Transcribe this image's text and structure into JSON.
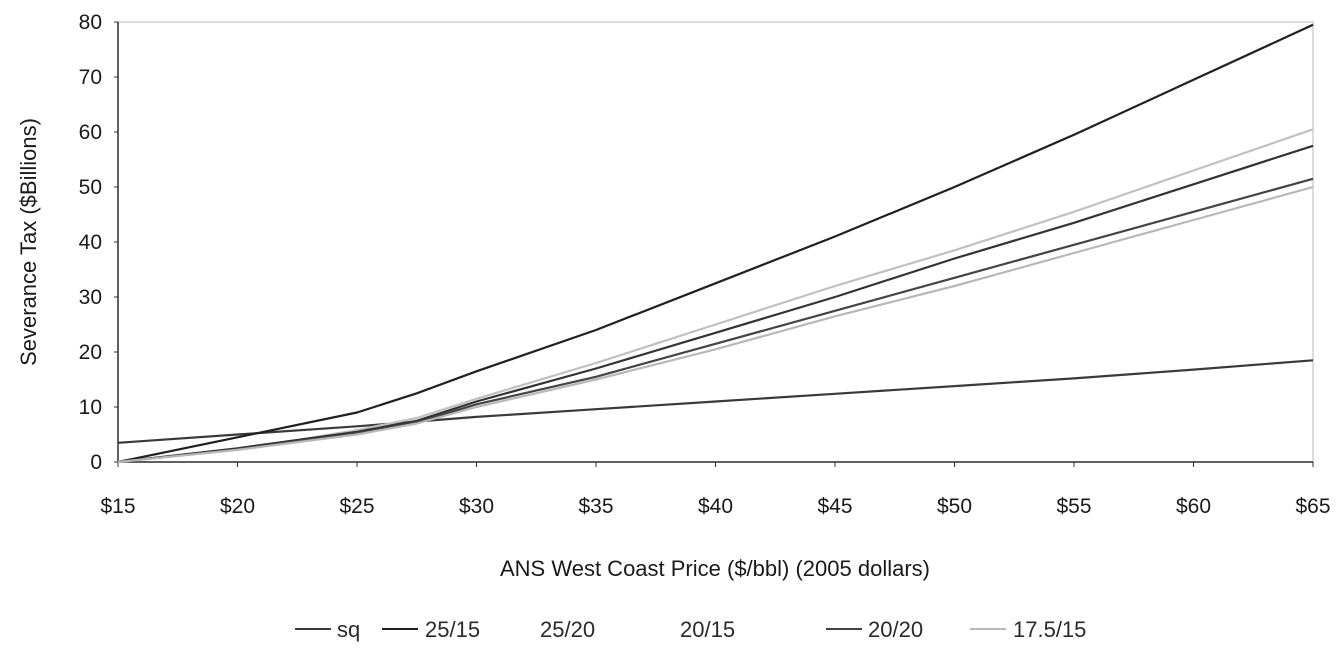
{
  "chart_data": {
    "type": "line",
    "title": "",
    "xlabel": "ANS West Coast Price ($/bbl) (2005 dollars)",
    "ylabel": "Severance Tax ($Billions)",
    "x": [
      15,
      20,
      25,
      27.5,
      30,
      35,
      40,
      45,
      50,
      55,
      60,
      65
    ],
    "x_tick_labels": [
      "$15",
      "$20",
      "$25",
      "$30",
      "$35",
      "$40",
      "$45",
      "$50",
      "$55",
      "$60",
      "$65"
    ],
    "x_ticks": [
      15,
      20,
      25,
      30,
      35,
      40,
      45,
      50,
      55,
      60,
      65
    ],
    "xlim": [
      15,
      65
    ],
    "ylim": [
      0,
      80
    ],
    "y_ticks": [
      0,
      10,
      20,
      30,
      40,
      50,
      60,
      70,
      80
    ],
    "grid": false,
    "legend_position": "bottom",
    "series": [
      {
        "name": "sq",
        "color": "#3a3a3a",
        "points": [
          [
            15,
            3.5
          ],
          [
            20,
            5
          ],
          [
            25,
            6.5
          ],
          [
            30,
            8.2
          ],
          [
            35,
            9.6
          ],
          [
            40,
            11
          ],
          [
            45,
            12.4
          ],
          [
            50,
            13.8
          ],
          [
            55,
            15.2
          ],
          [
            60,
            16.8
          ],
          [
            65,
            18.5
          ]
        ]
      },
      {
        "name": "25/15",
        "color": "#202020",
        "points": [
          [
            15,
            0
          ],
          [
            20,
            4.5
          ],
          [
            25,
            9
          ],
          [
            27.5,
            12.5
          ],
          [
            30,
            16.5
          ],
          [
            35,
            24
          ],
          [
            40,
            32.5
          ],
          [
            45,
            41
          ],
          [
            50,
            50
          ],
          [
            55,
            59.5
          ],
          [
            60,
            69.5
          ],
          [
            65,
            79.5
          ]
        ]
      },
      {
        "name": "25/20",
        "color": "#c0c0c0",
        "points": [
          [
            15,
            0
          ],
          [
            20,
            2.5
          ],
          [
            22.5,
            4
          ],
          [
            25,
            5.8
          ],
          [
            27.5,
            8
          ],
          [
            30,
            11.5
          ],
          [
            35,
            18
          ],
          [
            40,
            25
          ],
          [
            45,
            32
          ],
          [
            50,
            38.5
          ],
          [
            55,
            45.5
          ],
          [
            60,
            53
          ],
          [
            65,
            60.5
          ]
        ]
      },
      {
        "name": "20/15",
        "color": "#333333",
        "points": [
          [
            15,
            0
          ],
          [
            20,
            2.5
          ],
          [
            25,
            5.5
          ],
          [
            27.5,
            7.5
          ],
          [
            30,
            11
          ],
          [
            35,
            17
          ],
          [
            40,
            23.5
          ],
          [
            45,
            30
          ],
          [
            50,
            37
          ],
          [
            55,
            43.5
          ],
          [
            60,
            50.5
          ],
          [
            65,
            57.5
          ]
        ]
      },
      {
        "name": "20/20",
        "color": "#444444",
        "points": [
          [
            15,
            0
          ],
          [
            20,
            2.3
          ],
          [
            25,
            5.2
          ],
          [
            27.5,
            7.2
          ],
          [
            30,
            10.5
          ],
          [
            35,
            15.5
          ],
          [
            40,
            21.5
          ],
          [
            45,
            27.5
          ],
          [
            50,
            33.5
          ],
          [
            55,
            39.5
          ],
          [
            60,
            45.5
          ],
          [
            65,
            51.5
          ]
        ]
      },
      {
        "name": "17.5/15",
        "color": "#b8b8b8",
        "points": [
          [
            15,
            0
          ],
          [
            20,
            2.2
          ],
          [
            25,
            5
          ],
          [
            27.5,
            7
          ],
          [
            30,
            10
          ],
          [
            35,
            15
          ],
          [
            40,
            20.5
          ],
          [
            45,
            26.5
          ],
          [
            50,
            32
          ],
          [
            55,
            38
          ],
          [
            60,
            44
          ],
          [
            65,
            50
          ]
        ]
      }
    ],
    "legend": [
      {
        "name": "sq",
        "marker": true
      },
      {
        "name": "25/15",
        "marker": true
      },
      {
        "name": "25/20",
        "marker": false
      },
      {
        "name": "20/15",
        "marker": false
      },
      {
        "name": "20/20",
        "marker": true
      },
      {
        "name": "17.5/15",
        "marker": true
      }
    ]
  }
}
